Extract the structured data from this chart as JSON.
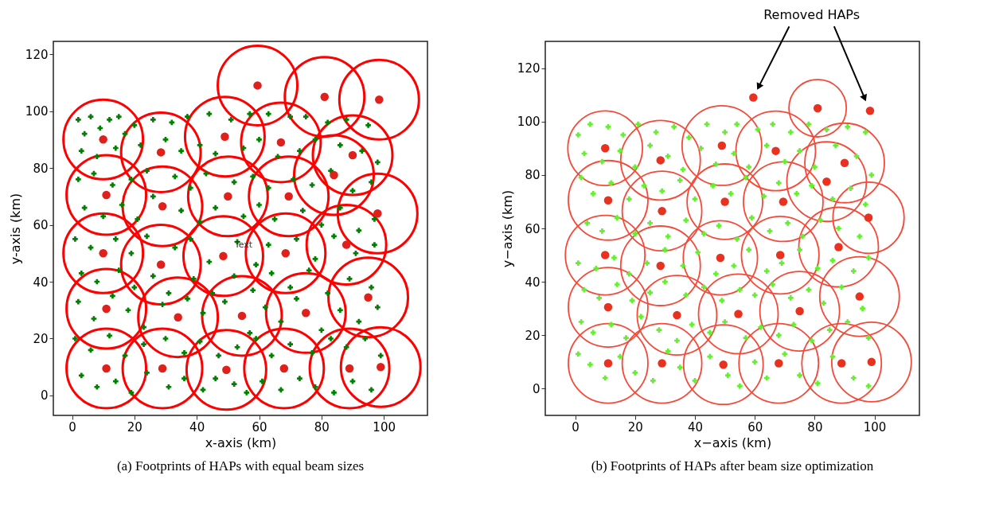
{
  "chart_data": [
    {
      "type": "scatter",
      "title": "(a) Footprints of HAPs with equal beam sizes",
      "xlabel": "x-axis (km)",
      "ylabel": "y-axis (km)",
      "xlim": [
        -6,
        114
      ],
      "ylim": [
        -7,
        124.5
      ],
      "xticks": [
        0,
        20,
        40,
        60,
        80,
        100
      ],
      "yticks": [
        0,
        20,
        40,
        60,
        80,
        100,
        120
      ],
      "annotations": [
        {
          "text": "Text",
          "x": 55,
          "y": 53
        }
      ],
      "series": [
        {
          "type": "scatter",
          "marker": "cross",
          "color": "#007f00",
          "x": [
            2,
            6,
            12,
            15,
            4,
            9,
            17,
            20,
            26,
            32,
            37,
            44,
            51,
            57,
            63,
            70,
            75,
            82,
            88,
            95,
            3,
            8,
            14,
            22,
            30,
            35,
            41,
            46,
            55,
            60,
            66,
            73,
            78,
            86,
            93,
            98,
            2,
            7,
            13,
            19,
            24,
            33,
            38,
            43,
            52,
            58,
            63,
            71,
            77,
            83,
            90,
            96,
            4,
            10,
            16,
            21,
            26,
            35,
            41,
            46,
            55,
            60,
            65,
            74,
            80,
            86,
            92,
            97,
            1,
            6,
            14,
            19,
            24,
            33,
            38,
            44,
            53,
            59,
            63,
            72,
            78,
            84,
            91,
            97,
            3,
            8,
            15,
            20,
            26,
            31,
            39,
            45,
            52,
            58,
            64,
            70,
            76,
            82,
            89,
            96,
            2,
            7,
            13,
            18,
            23,
            29,
            37,
            42,
            49,
            57,
            62,
            67,
            72,
            80,
            86,
            92,
            98,
            1,
            6,
            12,
            17,
            23,
            30,
            36,
            41,
            47,
            53,
            59,
            64,
            70,
            77,
            83,
            88,
            94,
            99,
            3,
            8,
            14,
            19,
            24,
            31,
            36,
            42,
            46,
            52,
            56,
            61,
            67,
            73,
            78,
            84,
            90,
            96
          ],
          "values": [
            97,
            98,
            97,
            98,
            92,
            94,
            92,
            95,
            97,
            96,
            98,
            99,
            97,
            99,
            99,
            98,
            98,
            96,
            97,
            95,
            86,
            84,
            87,
            88,
            90,
            86,
            88,
            85,
            87,
            90,
            84,
            86,
            90,
            88,
            86,
            82,
            76,
            78,
            74,
            76,
            79,
            77,
            73,
            78,
            75,
            77,
            73,
            76,
            74,
            79,
            72,
            75,
            66,
            63,
            67,
            62,
            70,
            65,
            61,
            66,
            63,
            67,
            62,
            65,
            60,
            66,
            58,
            62,
            55,
            52,
            55,
            50,
            56,
            52,
            55,
            47,
            54,
            46,
            53,
            55,
            48,
            56,
            50,
            53,
            43,
            40,
            44,
            38,
            42,
            36,
            41,
            36,
            42,
            37,
            43,
            38,
            44,
            36,
            41,
            38,
            33,
            27,
            35,
            30,
            24,
            32,
            34,
            29,
            33,
            22,
            31,
            26,
            34,
            23,
            30,
            26,
            31,
            20,
            16,
            21,
            14,
            18,
            20,
            15,
            19,
            14,
            17,
            20,
            14,
            18,
            15,
            20,
            17,
            20,
            14,
            7,
            3,
            5,
            1,
            8,
            3,
            6,
            2,
            6,
            4,
            1,
            5,
            2,
            6,
            3,
            1,
            5,
            2
          ]
        },
        {
          "type": "scatter",
          "marker": "circle",
          "color": "#e0201a",
          "x": [
            10,
            28.5,
            49,
            67,
            59.5,
            81,
            98.5,
            90,
            84,
            11,
            29,
            50,
            69.5,
            98,
            10,
            28.5,
            48.5,
            68.5,
            88,
            11,
            34,
            54.5,
            75,
            95,
            11,
            29,
            49.5,
            68,
            89,
            99
          ],
          "values": [
            90,
            85.5,
            91,
            89,
            109,
            105,
            104,
            84.5,
            77.5,
            70.5,
            66.5,
            70,
            70,
            64,
            50,
            46,
            49,
            50,
            53,
            30.5,
            27.5,
            28,
            29,
            34.5,
            9.5,
            9.5,
            9,
            9.5,
            9.5,
            10
          ]
        },
        {
          "type": "bubble",
          "color": "#ff0000",
          "x": [
            10,
            28.5,
            49,
            67,
            59.5,
            81,
            98.5,
            90,
            84,
            11,
            29,
            50,
            69.5,
            98,
            10,
            28.5,
            48.5,
            68.5,
            88,
            11,
            34,
            54.5,
            75,
            95,
            11,
            29,
            49.5,
            68,
            89,
            99
          ],
          "values": [
            90,
            85.5,
            91,
            89,
            109,
            105,
            104,
            84.5,
            77.5,
            70.5,
            66.5,
            70,
            70,
            64,
            50,
            46,
            49,
            50,
            53,
            30.5,
            27.5,
            28,
            29,
            34.5,
            9.5,
            9.5,
            9,
            9.5,
            9.5,
            10
          ],
          "sizes": [
            1,
            1,
            1,
            1,
            1,
            1,
            1,
            1,
            1,
            1,
            1,
            1,
            1,
            1,
            1,
            1,
            1,
            1,
            1,
            1,
            1,
            1,
            1,
            1,
            1,
            1,
            1,
            1,
            1,
            1
          ]
        }
      ]
    },
    {
      "type": "scatter",
      "title": "(b) Footprints of HAPs after beam size optimization",
      "xlabel": "x−axis (km)",
      "ylabel": "y−axis (km)",
      "xlim": [
        -10,
        115
      ],
      "ylim": [
        -10,
        130
      ],
      "xticks": [
        0,
        20,
        40,
        60,
        80,
        100
      ],
      "yticks": [
        0,
        20,
        40,
        60,
        80,
        100,
        120
      ],
      "annotations": [
        "Removed HAPs"
      ],
      "series": [
        {
          "type": "scatter",
          "marker": "cross",
          "color": "#66ee33",
          "x": [
            1,
            5,
            11,
            16,
            21,
            27,
            33,
            38,
            44,
            50,
            54,
            61,
            66,
            72,
            78,
            84,
            91,
            97,
            3,
            9,
            15,
            20,
            25,
            31,
            36,
            42,
            47,
            53,
            58,
            64,
            70,
            75,
            80,
            87,
            94,
            99,
            2,
            6,
            12,
            18,
            23,
            29,
            35,
            40,
            46,
            52,
            57,
            63,
            68,
            74,
            79,
            86,
            92,
            97,
            4,
            9,
            14,
            20,
            25,
            31,
            37,
            43,
            48,
            54,
            59,
            65,
            71,
            76,
            82,
            88,
            95,
            1,
            7,
            13,
            18,
            24,
            30,
            36,
            41,
            47,
            53,
            58,
            64,
            69,
            75,
            81,
            86,
            93,
            98,
            3,
            8,
            14,
            19,
            25,
            30,
            37,
            43,
            49,
            55,
            60,
            66,
            72,
            78,
            83,
            89,
            96,
            2,
            6,
            12,
            17,
            22,
            28,
            34,
            39,
            45,
            50,
            57,
            62,
            68,
            73,
            79,
            85,
            91,
            98,
            1,
            5,
            10,
            15,
            20,
            26,
            31,
            35,
            40,
            45,
            51,
            55,
            60,
            64,
            70,
            75,
            81,
            86,
            93,
            98
          ],
          "values": [
            95,
            99,
            98,
            95,
            99,
            96,
            98,
            94,
            99,
            96,
            99,
            97,
            99,
            96,
            99,
            97,
            98,
            96,
            88,
            85,
            89,
            83,
            91,
            87,
            82,
            90,
            84,
            88,
            83,
            91,
            85,
            89,
            83,
            91,
            87,
            80,
            79,
            73,
            77,
            71,
            76,
            74,
            78,
            71,
            76,
            73,
            79,
            72,
            77,
            73,
            76,
            71,
            75,
            69,
            62,
            59,
            64,
            58,
            62,
            57,
            63,
            58,
            61,
            56,
            64,
            59,
            62,
            57,
            63,
            60,
            57,
            47,
            45,
            49,
            43,
            47,
            52,
            46,
            51,
            43,
            46,
            52,
            44,
            47,
            52,
            45,
            48,
            44,
            49,
            37,
            34,
            39,
            33,
            36,
            40,
            35,
            38,
            33,
            37,
            35,
            39,
            34,
            37,
            32,
            38,
            30,
            25,
            21,
            24,
            19,
            27,
            22,
            18,
            24,
            21,
            25,
            19,
            23,
            20,
            24,
            18,
            22,
            25,
            19,
            13,
            9,
            4,
            12,
            6,
            3,
            14,
            8,
            3,
            12,
            5,
            1,
            10,
            4,
            13,
            5,
            2,
            12,
            4,
            1
          ]
        },
        {
          "type": "scatter",
          "marker": "circle",
          "color": "#e8321f",
          "x": [
            10,
            28.5,
            49,
            67,
            59.5,
            81,
            98.5,
            90,
            84,
            11,
            29,
            50,
            69.5,
            98,
            10,
            28.5,
            48.5,
            68.5,
            88,
            11,
            34,
            54.5,
            75,
            95,
            11,
            29,
            49.5,
            68,
            89,
            99
          ],
          "values": [
            90,
            85.5,
            91,
            89,
            109,
            105,
            104,
            84.5,
            77.5,
            70.5,
            66.5,
            70,
            70,
            64,
            50,
            46,
            49,
            50,
            53,
            30.5,
            27.5,
            28,
            29,
            34.5,
            9.5,
            9.5,
            9,
            9.5,
            9.5,
            10
          ]
        },
        {
          "type": "bubble",
          "color": "#f54a3a",
          "x": [
            10,
            28.5,
            49,
            67,
            81,
            90,
            84,
            11,
            29,
            50,
            69.5,
            98,
            10,
            28.5,
            48.5,
            68.5,
            88,
            11,
            34,
            54.5,
            75,
            95,
            11,
            29,
            49.5,
            68,
            89,
            99
          ],
          "values": [
            90,
            85.5,
            91,
            89,
            105,
            84.5,
            77.5,
            70.5,
            66.5,
            70,
            70,
            64,
            50,
            46,
            49,
            50,
            53,
            30.5,
            27.5,
            28,
            29,
            34.5,
            9.5,
            9.5,
            9,
            9.5,
            9.5,
            10
          ],
          "sizes": [
            0.88,
            1,
            1,
            1,
            0.52,
            1,
            1,
            1,
            1,
            0.9,
            1,
            0.8,
            1,
            1,
            0.87,
            0.95,
            1,
            1,
            1,
            1,
            1,
            1,
            1,
            1,
            1,
            1,
            1,
            1
          ]
        }
      ]
    }
  ]
}
